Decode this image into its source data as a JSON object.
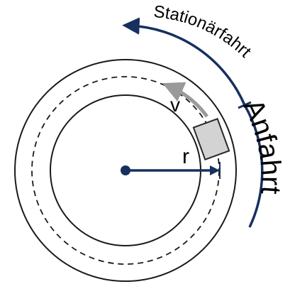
{
  "diagram": {
    "labels": {
      "station_drive": "Stationärfahrt",
      "start_drive": "Anfahrt",
      "velocity": "v",
      "radius": "r"
    },
    "colors": {
      "stroke": "#1a1a1a",
      "accent_navy": "#16305f",
      "velocity_arrow": "#9a9a9a",
      "vehicle_fill": "#d3d3d3",
      "vehicle_stroke": "#2a2a2a",
      "background": "#ffffff"
    }
  }
}
